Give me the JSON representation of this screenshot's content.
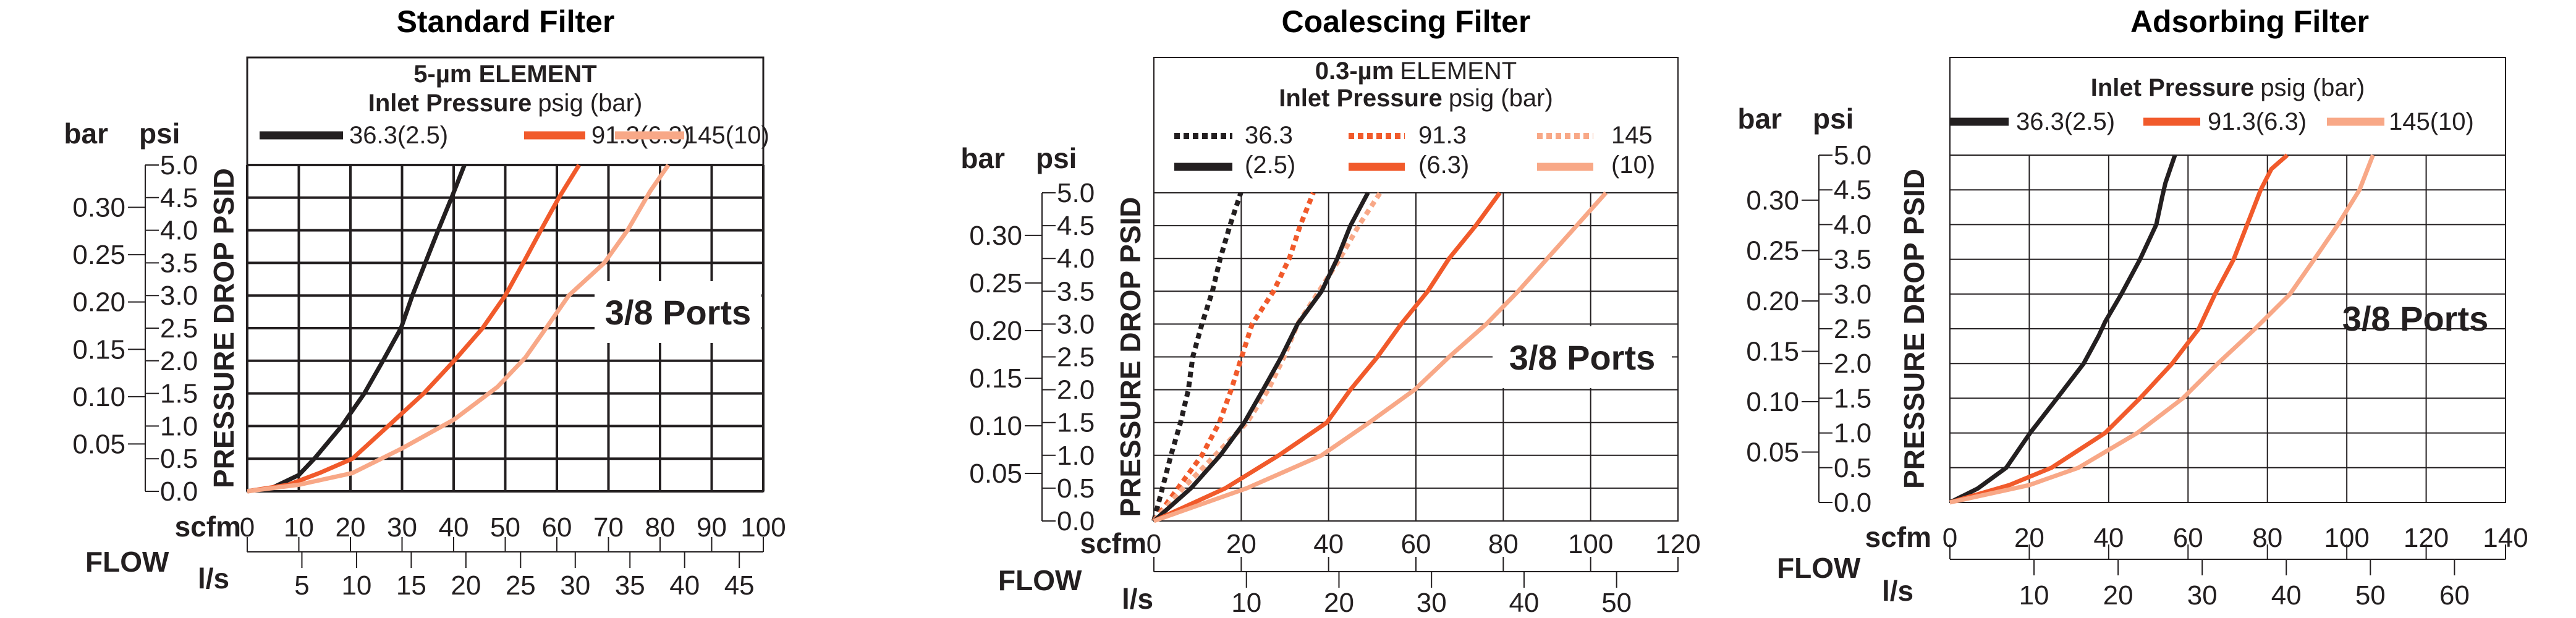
{
  "colors": {
    "low": "#231f20",
    "mid": "#f15a2b",
    "high": "#f8a887"
  },
  "chart_data": [
    {
      "type": "line",
      "title": "Standard Filter",
      "element_label": {
        "bold": "5-µm ELEMENT",
        "rest": ""
      },
      "legend_title": {
        "bold": "Inlet Pressure",
        "rest": "psig (bar)"
      },
      "xlabel": "FLOW",
      "x_unit": "scfm",
      "x_unit_secondary": "l/s",
      "ylabel": "PRESSURE DROP PSID",
      "y_unit": "psi",
      "y_unit_secondary": "bar",
      "annotation": "3/8 Ports",
      "xlim": [
        0,
        100
      ],
      "ylim": [
        0,
        5
      ],
      "grid": true,
      "x_ticks": [
        "0",
        "10",
        "20",
        "30",
        "40",
        "50",
        "60",
        "70",
        "80",
        "90",
        "100"
      ],
      "x_secondary_ticks": [
        "5",
        "10",
        "15",
        "20",
        "25",
        "30",
        "35",
        "40",
        "45"
      ],
      "y_ticks": [
        "5.0",
        "4.5",
        "4.0",
        "3.5",
        "3.0",
        "2.5",
        "2.0",
        "1.5",
        "1.0",
        "0.5",
        "0.0"
      ],
      "y_secondary_ticks": [
        "0.30",
        "0.25",
        "0.20",
        "0.15",
        "0.10",
        "0.05"
      ],
      "legend": [
        {
          "label": "36.3(2.5)",
          "color": "#231f20"
        },
        {
          "label": "91.3(6.3)",
          "color": "#f15a2b"
        },
        {
          "label": "145(10)",
          "color": "#f8a887"
        }
      ],
      "series": [
        {
          "name": "36.3(2.5)",
          "color": "#231f20",
          "style": "solid",
          "points": [
            [
              0,
              0
            ],
            [
              5,
              0.06
            ],
            [
              10,
              0.25
            ],
            [
              13,
              0.5
            ],
            [
              18.3,
              1.0
            ],
            [
              22.7,
              1.5
            ],
            [
              26.3,
              2.0
            ],
            [
              29.8,
              2.5
            ],
            [
              32,
              3.0
            ],
            [
              34.5,
              3.5
            ],
            [
              37,
              4.0
            ],
            [
              39.6,
              4.5
            ],
            [
              42.1,
              5.0
            ]
          ]
        },
        {
          "name": "91.3(6.3)",
          "color": "#f15a2b",
          "style": "solid",
          "points": [
            [
              0,
              0
            ],
            [
              8,
              0.1
            ],
            [
              14,
              0.28
            ],
            [
              20.4,
              0.5
            ],
            [
              27.3,
              1.0
            ],
            [
              34.2,
              1.5
            ],
            [
              40.1,
              2.0
            ],
            [
              45.6,
              2.5
            ],
            [
              50,
              3.0
            ],
            [
              53.5,
              3.5
            ],
            [
              56.9,
              4.0
            ],
            [
              60.4,
              4.5
            ],
            [
              64.3,
              5.0
            ]
          ]
        },
        {
          "name": "145(10)",
          "color": "#f8a887",
          "style": "solid",
          "points": [
            [
              0,
              0
            ],
            [
              10,
              0.1
            ],
            [
              20.4,
              0.28
            ],
            [
              29.8,
              0.65
            ],
            [
              40.1,
              1.1
            ],
            [
              48.5,
              1.6
            ],
            [
              53.9,
              2.05
            ],
            [
              57.9,
              2.5
            ],
            [
              62.3,
              3.0
            ],
            [
              69.2,
              3.5
            ],
            [
              73.7,
              4.0
            ],
            [
              78.1,
              4.6
            ],
            [
              81.6,
              5.0
            ]
          ]
        }
      ]
    },
    {
      "type": "line",
      "title": "Coalescing Filter",
      "element_label": {
        "bold": "0.3-µm",
        "rest": "ELEMENT"
      },
      "legend_title": {
        "bold": "Inlet Pressure",
        "rest": "psig (bar)"
      },
      "xlabel": "FLOW",
      "x_unit": "scfm",
      "x_unit_secondary": "l/s",
      "ylabel": "PRESSURE DROP PSID",
      "y_unit": "psi",
      "y_unit_secondary": "bar",
      "annotation": "3/8 Ports",
      "xlim": [
        0,
        120
      ],
      "ylim": [
        0,
        5
      ],
      "grid": true,
      "x_ticks": [
        "0",
        "20",
        "40",
        "60",
        "80",
        "100",
        "120"
      ],
      "x_secondary_ticks": [
        "10",
        "20",
        "30",
        "40",
        "50"
      ],
      "y_ticks": [
        "5.0",
        "4.5",
        "4.0",
        "3.5",
        "3.0",
        "2.5",
        "2.0",
        "1.5",
        "1.0",
        "0.5",
        "0.0"
      ],
      "y_secondary_ticks": [
        "0.30",
        "0.25",
        "0.20",
        "0.15",
        "0.10",
        "0.05"
      ],
      "legend": [
        {
          "label_top": "36.3",
          "label_bottom": "(2.5)",
          "color": "#231f20"
        },
        {
          "label_top": "91.3",
          "label_bottom": "(6.3)",
          "color": "#f15a2b"
        },
        {
          "label_top": "145",
          "label_bottom": "(10)",
          "color": "#f8a887"
        }
      ],
      "series": [
        {
          "name": "36.3(2.5)",
          "color": "#231f20",
          "style": "dotted",
          "points": [
            [
              0,
              0
            ],
            [
              3.9,
              1.0
            ],
            [
              6.1,
              1.5
            ],
            [
              7.9,
              2.0
            ],
            [
              8.9,
              2.5
            ],
            [
              11,
              3.0
            ],
            [
              13.4,
              3.5
            ],
            [
              15.2,
              4.0
            ],
            [
              17.4,
              4.5
            ],
            [
              19.9,
              5.0
            ]
          ]
        },
        {
          "name": "91.3(6.3)",
          "color": "#f15a2b",
          "style": "dotted",
          "points": [
            [
              0,
              0
            ],
            [
              5.5,
              0.5
            ],
            [
              11,
              1.0
            ],
            [
              15,
              1.5
            ],
            [
              17.7,
              2.0
            ],
            [
              20.1,
              2.5
            ],
            [
              22.5,
              3.0
            ],
            [
              27.4,
              3.5
            ],
            [
              31,
              4.0
            ],
            [
              33.5,
              4.5
            ],
            [
              36.5,
              5.0
            ]
          ]
        },
        {
          "name": "145(10)",
          "color": "#f8a887",
          "style": "dotted",
          "points": [
            [
              0,
              0
            ],
            [
              6.7,
              0.5
            ],
            [
              14,
              1.0
            ],
            [
              21.3,
              1.5
            ],
            [
              26.2,
              2.0
            ],
            [
              29.8,
              2.5
            ],
            [
              32.9,
              3.0
            ],
            [
              37.8,
              3.5
            ],
            [
              42.6,
              4.0
            ],
            [
              46.9,
              4.5
            ],
            [
              51.8,
              5.0
            ]
          ]
        },
        {
          "name": "36.3(2.5)",
          "color": "#231f20",
          "style": "solid",
          "points": [
            [
              0,
              0
            ],
            [
              8.5,
              0.5
            ],
            [
              15.2,
              1.0
            ],
            [
              20.7,
              1.5
            ],
            [
              25,
              2.0
            ],
            [
              29.2,
              2.5
            ],
            [
              32.9,
              3.0
            ],
            [
              38.4,
              3.5
            ],
            [
              42,
              4.0
            ],
            [
              45,
              4.5
            ],
            [
              49,
              5.0
            ]
          ]
        },
        {
          "name": "91.3(6.3)",
          "color": "#f15a2b",
          "style": "solid",
          "points": [
            [
              0,
              0
            ],
            [
              16.4,
              0.5
            ],
            [
              28.6,
              1.0
            ],
            [
              39.6,
              1.5
            ],
            [
              45,
              2.0
            ],
            [
              51.2,
              2.5
            ],
            [
              56.6,
              3.0
            ],
            [
              62.7,
              3.5
            ],
            [
              67.6,
              4.0
            ],
            [
              73.7,
              4.5
            ],
            [
              79.2,
              5.0
            ]
          ]
        },
        {
          "name": "145(10)",
          "color": "#f8a887",
          "style": "solid",
          "points": [
            [
              0,
              0
            ],
            [
              21.3,
              0.5
            ],
            [
              38.4,
              1.0
            ],
            [
              49.3,
              1.5
            ],
            [
              59.7,
              2.0
            ],
            [
              67.6,
              2.5
            ],
            [
              76.1,
              3.0
            ],
            [
              83.4,
              3.5
            ],
            [
              90.1,
              4.0
            ],
            [
              96.8,
              4.5
            ],
            [
              103.5,
              5.0
            ]
          ]
        }
      ]
    },
    {
      "type": "line",
      "title": "Adsorbing Filter",
      "legend_title": {
        "bold": "Inlet Pressure",
        "rest": "psig (bar)"
      },
      "xlabel": "FLOW",
      "x_unit": "scfm",
      "x_unit_secondary": "l/s",
      "ylabel": "PRESSURE DROP PSID",
      "y_unit": "psi",
      "y_unit_secondary": "bar",
      "annotation": "3/8 Ports",
      "xlim": [
        0,
        140
      ],
      "ylim": [
        0,
        5
      ],
      "grid": true,
      "x_ticks": [
        "0",
        "20",
        "40",
        "60",
        "80",
        "100",
        "120",
        "140"
      ],
      "x_secondary_ticks": [
        "10",
        "20",
        "30",
        "40",
        "50",
        "60"
      ],
      "y_ticks": [
        "5.0",
        "4.5",
        "4.0",
        "3.5",
        "3.0",
        "2.5",
        "2.0",
        "1.5",
        "1.0",
        "0.5",
        "0.0"
      ],
      "y_secondary_ticks": [
        "0.30",
        "0.25",
        "0.20",
        "0.15",
        "0.10",
        "0.05"
      ],
      "legend": [
        {
          "label": "36.3(2.5)",
          "color": "#231f20"
        },
        {
          "label": "91.3(6.3)",
          "color": "#f15a2b"
        },
        {
          "label": "145(10)",
          "color": "#f8a887"
        }
      ],
      "series": [
        {
          "name": "36.3(2.5)",
          "color": "#231f20",
          "style": "solid",
          "points": [
            [
              0,
              0
            ],
            [
              7,
              0.2
            ],
            [
              14.2,
              0.5
            ],
            [
              20.2,
              1.0
            ],
            [
              27,
              1.5
            ],
            [
              33.7,
              2.0
            ],
            [
              37.5,
              2.4
            ],
            [
              39.1,
              2.6
            ],
            [
              43.2,
              3.0
            ],
            [
              47.9,
              3.5
            ],
            [
              52,
              4.0
            ],
            [
              53.5,
              4.4
            ],
            [
              54.3,
              4.6
            ],
            [
              56.7,
              5.0
            ]
          ]
        },
        {
          "name": "91.3(6.3)",
          "color": "#f15a2b",
          "style": "solid",
          "points": [
            [
              0,
              0
            ],
            [
              15,
              0.25
            ],
            [
              25.6,
              0.5
            ],
            [
              39.1,
              1.0
            ],
            [
              47.9,
              1.5
            ],
            [
              56,
              2.0
            ],
            [
              62.7,
              2.5
            ],
            [
              66.8,
              3.0
            ],
            [
              71.5,
              3.5
            ],
            [
              74.9,
              4.0
            ],
            [
              78.3,
              4.5
            ],
            [
              81,
              4.8
            ],
            [
              85,
              5.0
            ]
          ]
        },
        {
          "name": "145(10)",
          "color": "#f8a887",
          "style": "solid",
          "points": [
            [
              0,
              0
            ],
            [
              20,
              0.25
            ],
            [
              32.4,
              0.5
            ],
            [
              47.2,
              1.0
            ],
            [
              58.7,
              1.5
            ],
            [
              67.5,
              2.0
            ],
            [
              76.9,
              2.5
            ],
            [
              85.7,
              3.0
            ],
            [
              91.8,
              3.5
            ],
            [
              97.8,
              4.0
            ],
            [
              103.2,
              4.5
            ],
            [
              106.6,
              5.0
            ]
          ]
        }
      ]
    }
  ]
}
